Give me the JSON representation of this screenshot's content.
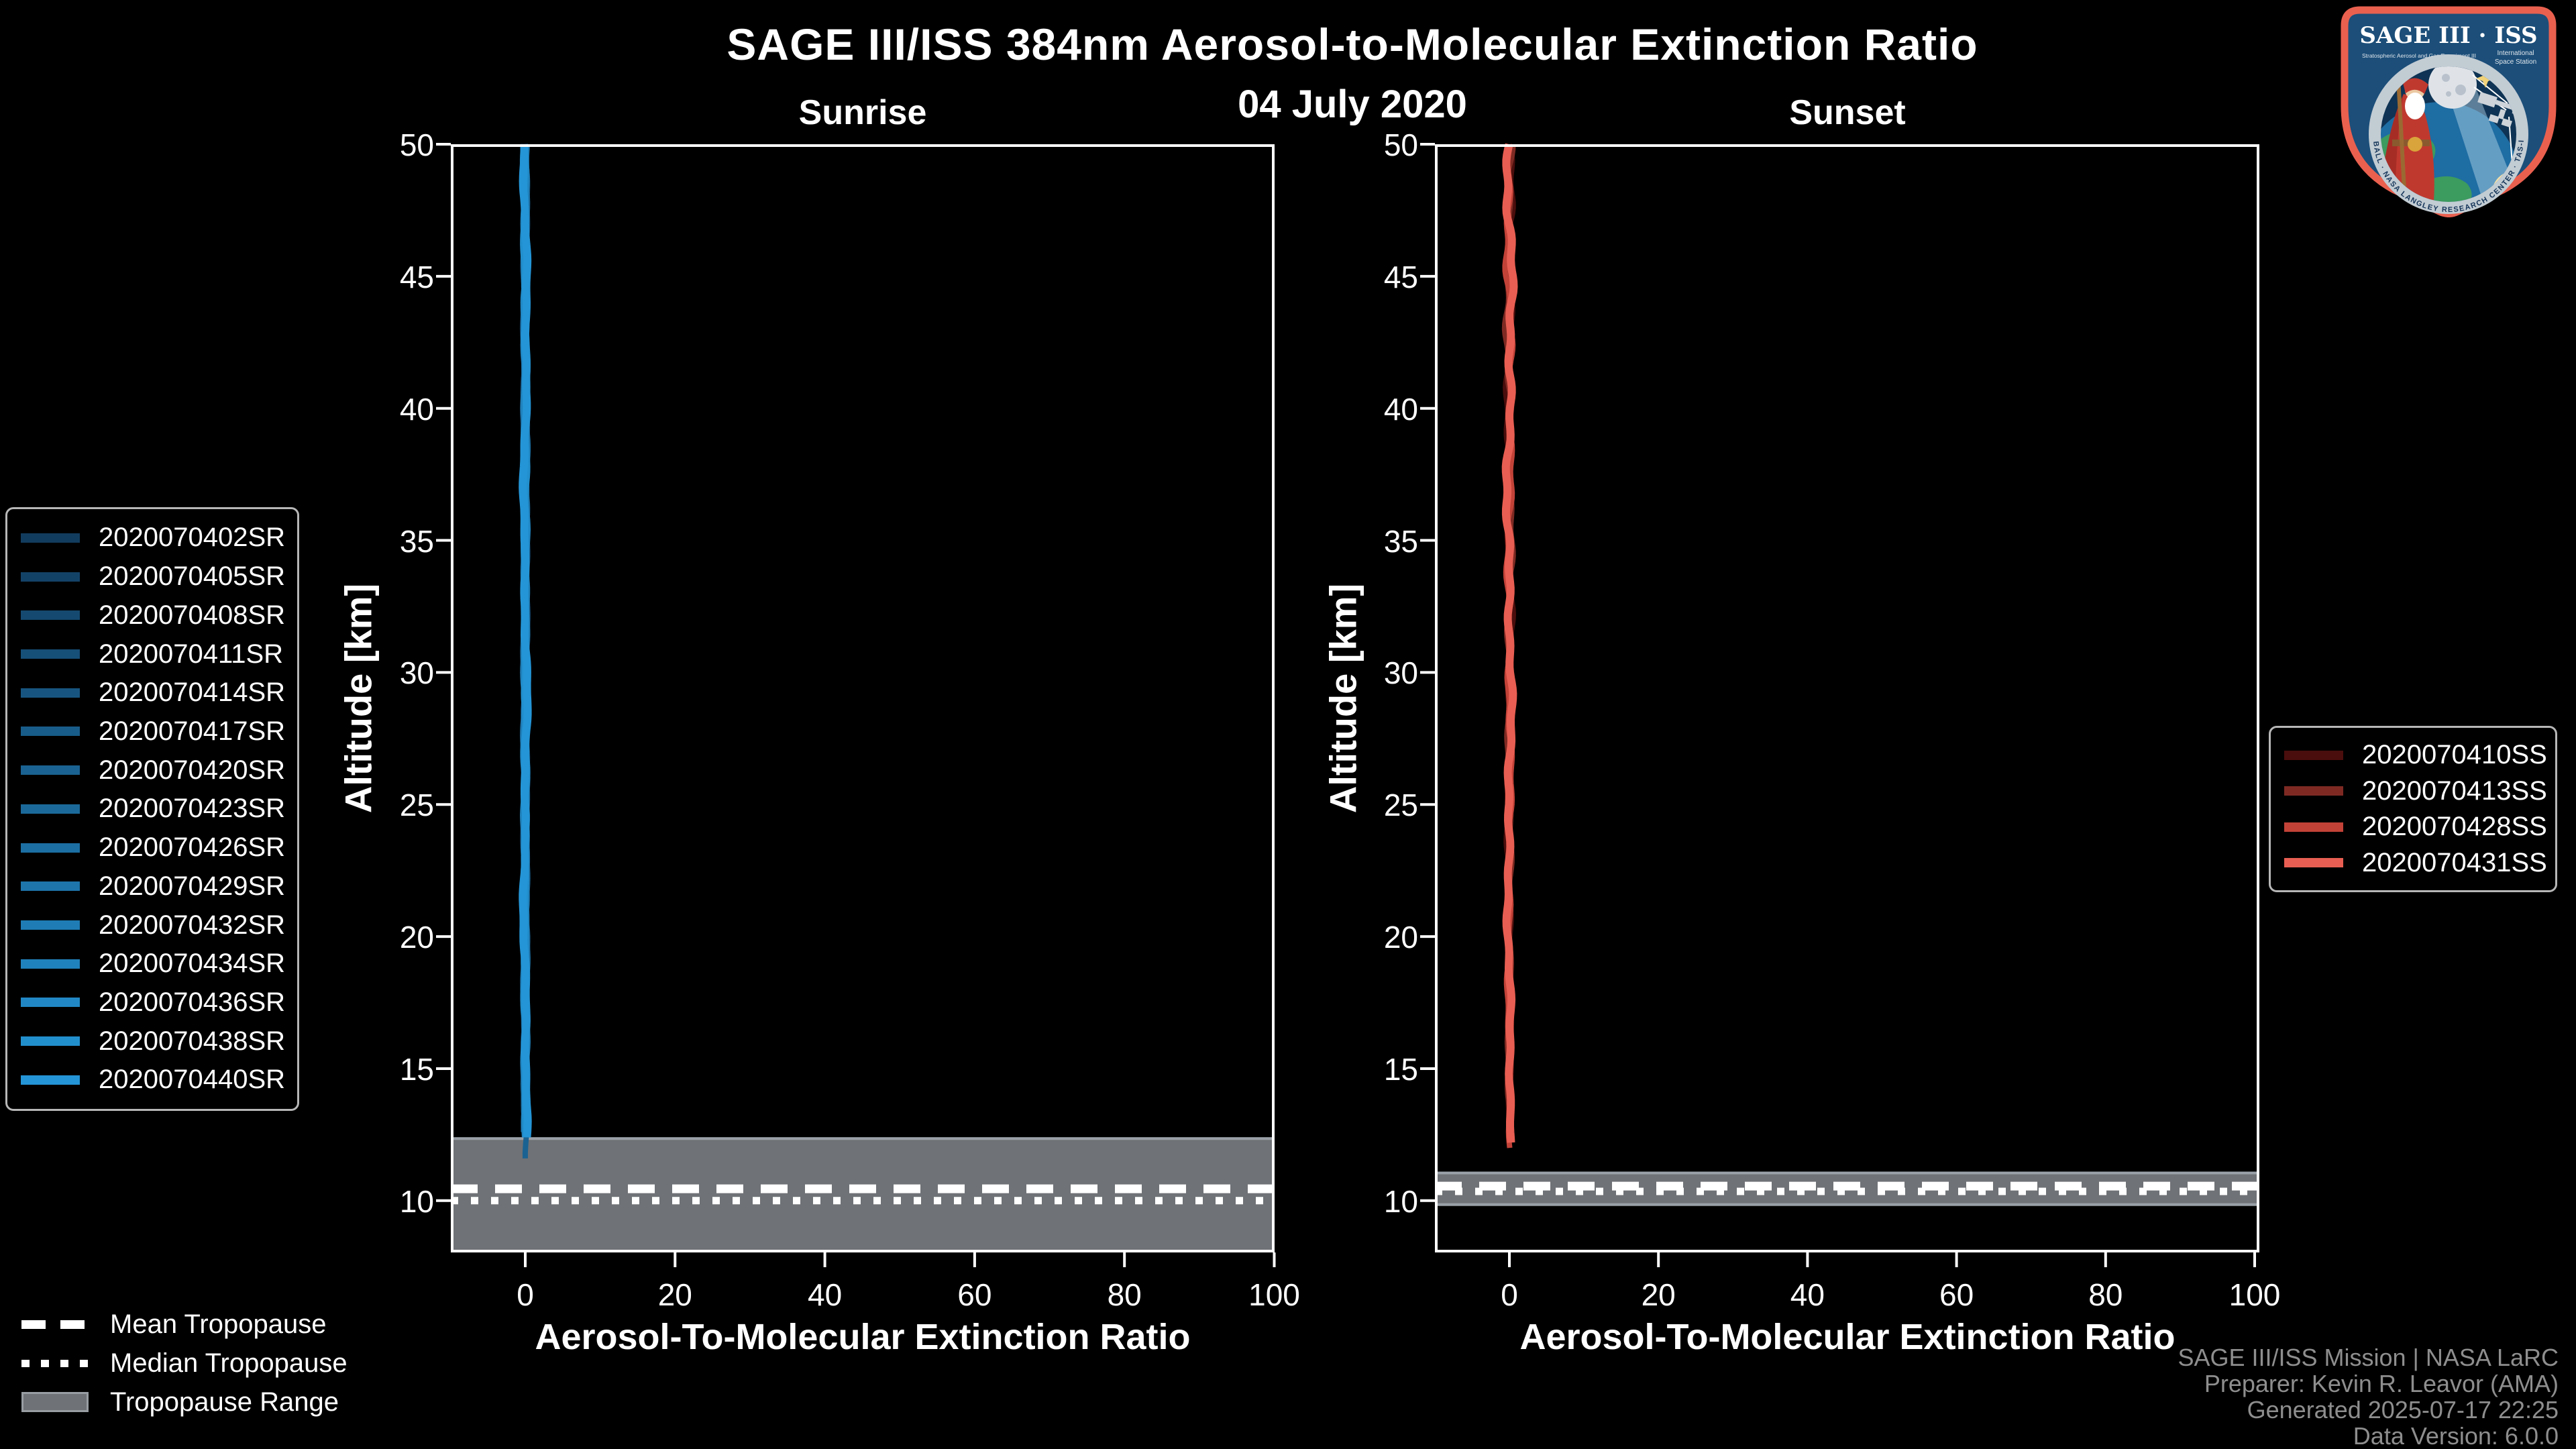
{
  "page": {
    "background": "#000000"
  },
  "header": {
    "title": "SAGE III/ISS 384nm Aerosol-to-Molecular Extinction Ratio",
    "date": "04 July 2020"
  },
  "chart_data": [
    {
      "type": "line",
      "panel": "sunrise",
      "title": "Sunrise",
      "xlabel": "Aerosol-To-Molecular Extinction Ratio",
      "ylabel": "Altitude [km]",
      "xlim": [
        -10,
        100
      ],
      "ylim": [
        8,
        50
      ],
      "xticks": [
        0,
        20,
        40,
        60,
        80,
        100
      ],
      "yticks": [
        10,
        15,
        20,
        25,
        30,
        35,
        40,
        45,
        50
      ],
      "grid": false,
      "legend_position": "outside-left",
      "series": [
        {
          "name": "2020070402SR",
          "color": "#123C5E",
          "ratio": 0,
          "alt_min_km": 12.6,
          "alt_max_km": 50
        },
        {
          "name": "2020070405SR",
          "color": "#134267",
          "ratio": 0,
          "alt_min_km": 12.5,
          "alt_max_km": 50
        },
        {
          "name": "2020070408SR",
          "color": "#15496F",
          "ratio": 0,
          "alt_min_km": 12.45,
          "alt_max_km": 50
        },
        {
          "name": "2020070411SR",
          "color": "#164F78",
          "ratio": 0,
          "alt_min_km": 12.4,
          "alt_max_km": 50
        },
        {
          "name": "2020070414SR",
          "color": "#175580",
          "ratio": 0,
          "alt_min_km": 12.5,
          "alt_max_km": 50
        },
        {
          "name": "2020070417SR",
          "color": "#185C89",
          "ratio": 0,
          "alt_min_km": 12.35,
          "alt_max_km": 50
        },
        {
          "name": "2020070420SR",
          "color": "#1A6291",
          "ratio": 0,
          "alt_min_km": 11.45,
          "alt_max_km": 50
        },
        {
          "name": "2020070423SR",
          "color": "#1B699A",
          "ratio": 0,
          "alt_min_km": 12.3,
          "alt_max_km": 50
        },
        {
          "name": "2020070426SR",
          "color": "#1C6FA3",
          "ratio": 0,
          "alt_min_km": 12.4,
          "alt_max_km": 50
        },
        {
          "name": "2020070429SR",
          "color": "#1D75AB",
          "ratio": 0,
          "alt_min_km": 12.3,
          "alt_max_km": 50
        },
        {
          "name": "2020070432SR",
          "color": "#1F7CB4",
          "ratio": 0,
          "alt_min_km": 12.35,
          "alt_max_km": 50
        },
        {
          "name": "2020070434SR",
          "color": "#2082BC",
          "ratio": 0,
          "alt_min_km": 12.3,
          "alt_max_km": 50
        },
        {
          "name": "2020070436SR",
          "color": "#2188C5",
          "ratio": 0,
          "alt_min_km": 12.25,
          "alt_max_km": 50
        },
        {
          "name": "2020070438SR",
          "color": "#228FCD",
          "ratio": 0,
          "alt_min_km": 12.3,
          "alt_max_km": 50
        },
        {
          "name": "2020070440SR",
          "color": "#2495D6",
          "ratio": 0,
          "alt_min_km": 12.2,
          "alt_max_km": 50
        }
      ],
      "tropopause": {
        "mean_km": 10.45,
        "median_km": 10.0,
        "range_km": [
          8.0,
          12.4
        ]
      }
    },
    {
      "type": "line",
      "panel": "sunset",
      "title": "Sunset",
      "xlabel": "Aerosol-To-Molecular Extinction Ratio",
      "ylabel": "Altitude [km]",
      "xlim": [
        -10,
        100
      ],
      "ylim": [
        8,
        50
      ],
      "xticks": [
        0,
        20,
        40,
        60,
        80,
        100
      ],
      "yticks": [
        10,
        15,
        20,
        25,
        30,
        35,
        40,
        45,
        50
      ],
      "grid": false,
      "legend_position": "outside-right",
      "series": [
        {
          "name": "2020070410SS",
          "color": "#4A0E0C",
          "ratio": 0,
          "alt_min_km": 12.6,
          "alt_max_km": 50
        },
        {
          "name": "2020070413SS",
          "color": "#7E2A23",
          "ratio": 0,
          "alt_min_km": 12.4,
          "alt_max_km": 50
        },
        {
          "name": "2020070428SS",
          "color": "#C24238",
          "ratio": 0,
          "alt_min_km": 11.85,
          "alt_max_km": 50
        },
        {
          "name": "2020070431SS",
          "color": "#E85E52",
          "ratio": 0,
          "alt_min_km": 12.0,
          "alt_max_km": 50
        }
      ],
      "tropopause": {
        "mean_km": 10.55,
        "median_km": 10.35,
        "range_km": [
          9.8,
          11.1
        ]
      }
    }
  ],
  "tropopause_legend": {
    "mean": "Mean Tropopause",
    "median": "Median Tropopause",
    "range": "Tropopause Range"
  },
  "footer": {
    "line1": "SAGE III/ISS Mission | NASA LaRC",
    "line2": "Preparer: Kevin R. Leavor (AMA)",
    "line3": "Generated 2025-07-17 22:25",
    "line4": "Data Version: 6.0.0"
  },
  "logo": {
    "title": "SAGE III · ISS",
    "subtitle_left": "Stratospheric Aerosol and Gas Experiment III",
    "subtitle_right_1": "International",
    "subtitle_right_2": "Space Station",
    "arc_text": "BALL · NASA LANGLEY RESEARCH CENTER · TAS-I · ESA"
  },
  "colors": {
    "band": "#6F7276",
    "band_edge": "#9AA1A8",
    "axis": "#FFFFFF",
    "tick_text": "#FFFFFF",
    "footer_text": "#8E8E8E",
    "legend_border": "#B7B7B7",
    "tropopause_line": "#FFFFFF"
  }
}
